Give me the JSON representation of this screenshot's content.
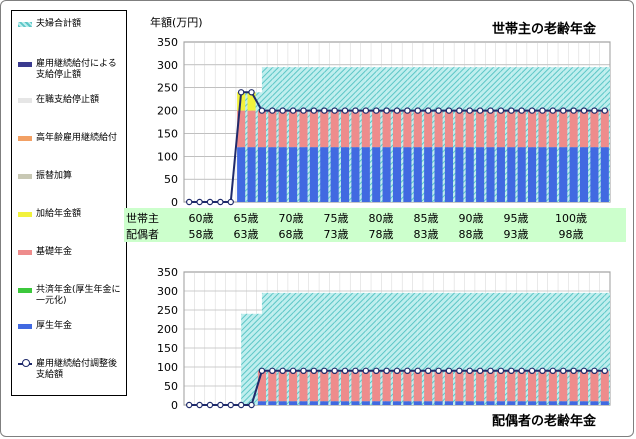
{
  "legend": {
    "items": [
      {
        "label": "夫婦合計額",
        "swatch": "hatch-teal"
      },
      {
        "label": "雇用継続給付による支給停止額",
        "swatch": "#3b3b8f"
      },
      {
        "label": "在職支給停止額",
        "swatch": "#e6e6e6"
      },
      {
        "label": "高年齢雇用継続給付",
        "swatch": "#f2a064"
      },
      {
        "label": "振替加算",
        "swatch": "#c8c8b4"
      },
      {
        "label": "加給年金額",
        "swatch": "#f2f23c"
      },
      {
        "label": "基礎年金",
        "swatch": "#ee8c8c"
      },
      {
        "label": "共済年金(厚生年金に一元化)",
        "swatch": "#3cc83c"
      },
      {
        "label": "厚生年金",
        "swatch": "#4169e1"
      },
      {
        "label": "雇用継続給付調整後支給額",
        "swatch": "line-marker"
      }
    ]
  },
  "axis_rows": {
    "husband_label": "世帯主",
    "wife_label": "配偶者",
    "husband_ages": [
      "60歳",
      "65歳",
      "70歳",
      "75歳",
      "80歳",
      "85歳",
      "90歳",
      "95歳",
      "100歳"
    ],
    "wife_ages": [
      "58歳",
      "63歳",
      "68歳",
      "73歳",
      "78歳",
      "83歳",
      "88歳",
      "93歳",
      "98歳"
    ]
  },
  "chart_data": [
    {
      "type": "bar",
      "title": "世帯主の老齢年金",
      "ylabel": "年額(万円)",
      "ylim": [
        0,
        350
      ],
      "yticks": [
        "0",
        "50",
        "100",
        "150",
        "200",
        "250",
        "300",
        "350"
      ],
      "grid": true,
      "x": "ages 60-100 (41 yearly points)",
      "series": [
        {
          "name": "厚生年金",
          "values": [
            0,
            0,
            0,
            0,
            0,
            120,
            120,
            120,
            120,
            120,
            120,
            120,
            120,
            120,
            120,
            120,
            120,
            120,
            120,
            120,
            120,
            120,
            120,
            120,
            120,
            120,
            120,
            120,
            120,
            120,
            120,
            120,
            120,
            120,
            120,
            120,
            120,
            120,
            120,
            120,
            120
          ]
        },
        {
          "name": "基礎年金",
          "values": [
            0,
            0,
            0,
            0,
            0,
            80,
            80,
            80,
            80,
            80,
            80,
            80,
            80,
            80,
            80,
            80,
            80,
            80,
            80,
            80,
            80,
            80,
            80,
            80,
            80,
            80,
            80,
            80,
            80,
            80,
            80,
            80,
            80,
            80,
            80,
            80,
            80,
            80,
            80,
            80,
            80
          ]
        },
        {
          "name": "加給年金額",
          "values": [
            0,
            0,
            0,
            0,
            0,
            40,
            40,
            0,
            0,
            0,
            0,
            0,
            0,
            0,
            0,
            0,
            0,
            0,
            0,
            0,
            0,
            0,
            0,
            0,
            0,
            0,
            0,
            0,
            0,
            0,
            0,
            0,
            0,
            0,
            0,
            0,
            0,
            0,
            0,
            0,
            0
          ]
        },
        {
          "name": "夫婦合計額",
          "values": [
            0,
            0,
            0,
            0,
            0,
            240,
            240,
            295,
            295,
            295,
            295,
            295,
            295,
            295,
            295,
            295,
            295,
            295,
            295,
            295,
            295,
            295,
            295,
            295,
            295,
            295,
            295,
            295,
            295,
            295,
            295,
            295,
            295,
            295,
            295,
            295,
            295,
            295,
            295,
            295,
            295
          ]
        },
        {
          "name": "雇用継続給付調整後支給額",
          "values": [
            0,
            0,
            0,
            0,
            0,
            240,
            240,
            200,
            200,
            200,
            200,
            200,
            200,
            200,
            200,
            200,
            200,
            200,
            200,
            200,
            200,
            200,
            200,
            200,
            200,
            200,
            200,
            200,
            200,
            200,
            200,
            200,
            200,
            200,
            200,
            200,
            200,
            200,
            200,
            200,
            200
          ]
        }
      ]
    },
    {
      "type": "bar",
      "title": "配偶者の老齢年金",
      "ylim": [
        0,
        350
      ],
      "yticks": [
        "0",
        "50",
        "100",
        "150",
        "200",
        "250",
        "300",
        "350"
      ],
      "grid": true,
      "x": "wife ages 58-98 (41 yearly points)",
      "series": [
        {
          "name": "厚生年金",
          "values": [
            0,
            0,
            0,
            0,
            0,
            0,
            0,
            10,
            10,
            10,
            10,
            10,
            10,
            10,
            10,
            10,
            10,
            10,
            10,
            10,
            10,
            10,
            10,
            10,
            10,
            10,
            10,
            10,
            10,
            10,
            10,
            10,
            10,
            10,
            10,
            10,
            10,
            10,
            10,
            10,
            10
          ]
        },
        {
          "name": "基礎年金",
          "values": [
            0,
            0,
            0,
            0,
            0,
            0,
            0,
            80,
            80,
            80,
            80,
            80,
            80,
            80,
            80,
            80,
            80,
            80,
            80,
            80,
            80,
            80,
            80,
            80,
            80,
            80,
            80,
            80,
            80,
            80,
            80,
            80,
            80,
            80,
            80,
            80,
            80,
            80,
            80,
            80,
            80
          ]
        },
        {
          "name": "夫婦合計額",
          "values": [
            0,
            0,
            0,
            0,
            0,
            240,
            240,
            295,
            295,
            295,
            295,
            295,
            295,
            295,
            295,
            295,
            295,
            295,
            295,
            295,
            295,
            295,
            295,
            295,
            295,
            295,
            295,
            295,
            295,
            295,
            295,
            295,
            295,
            295,
            295,
            295,
            295,
            295,
            295,
            295,
            295
          ]
        },
        {
          "name": "雇用継続給付調整後支給額",
          "values": [
            0,
            0,
            0,
            0,
            0,
            0,
            0,
            90,
            90,
            90,
            90,
            90,
            90,
            90,
            90,
            90,
            90,
            90,
            90,
            90,
            90,
            90,
            90,
            90,
            90,
            90,
            90,
            90,
            90,
            90,
            90,
            90,
            90,
            90,
            90,
            90,
            90,
            90,
            90,
            90,
            90
          ]
        }
      ]
    }
  ],
  "colors": {
    "kosei": "#4169e1",
    "kiso": "#ee8c8c",
    "kakyu": "#f2f23c",
    "total_hatch": "#7fd6d6",
    "line": "#1f2a6b",
    "age_band": "#ccffcc"
  }
}
